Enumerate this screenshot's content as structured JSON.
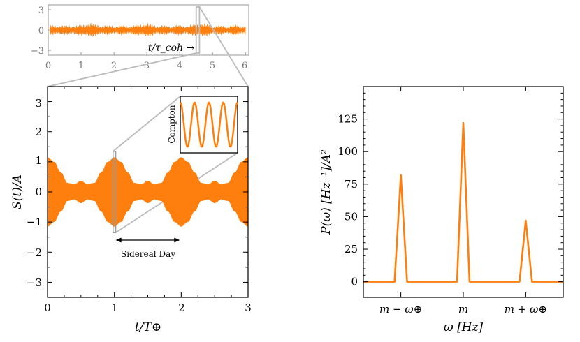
{
  "colors": {
    "signal": "#ff7f0e",
    "zoom": "#bbbbbb",
    "top_axis": "#999999",
    "axis": "#000000"
  },
  "chart_data": [
    {
      "type": "line",
      "panel": "top-inset",
      "description_text": {
        "annotation": "t/τ_coh →"
      },
      "xlim": [
        0,
        6.1
      ],
      "ylim": [
        -3.6,
        3.6
      ],
      "xticks": [
        "0",
        "1",
        "2",
        "3",
        "4",
        "5",
        "6"
      ],
      "yticks": [
        "3",
        "0",
        "−3"
      ],
      "typical_amplitude": 0.6,
      "zoom_window_x": [
        4.5,
        4.6
      ]
    },
    {
      "type": "line",
      "panel": "time-domain",
      "title": "",
      "xlabel": "t/T⊕",
      "ylabel": "S(t)/A",
      "xlim": [
        0,
        3
      ],
      "ylim": [
        -3.5,
        3.5
      ],
      "xticks": [
        "0",
        "1",
        "2",
        "3"
      ],
      "yticks": [
        "3",
        "2",
        "1",
        "0",
        "−1",
        "−2",
        "−3"
      ],
      "envelope_x": [
        0,
        0.1,
        0.2,
        0.3,
        0.4,
        0.5,
        0.6,
        0.7,
        0.8,
        0.9,
        1.0,
        1.1,
        1.2,
        1.3,
        1.4,
        1.5,
        1.6,
        1.7,
        1.8,
        1.9,
        2.0,
        2.1,
        2.2,
        2.3,
        2.4,
        2.5,
        2.6,
        2.7,
        2.8,
        2.9,
        3.0
      ],
      "envelope_y": [
        1.15,
        1.0,
        0.65,
        0.3,
        0.25,
        0.37,
        0.25,
        0.3,
        0.65,
        1.0,
        1.15,
        1.0,
        0.65,
        0.3,
        0.25,
        0.37,
        0.25,
        0.3,
        0.65,
        1.0,
        1.15,
        1.0,
        0.65,
        0.3,
        0.25,
        0.37,
        0.25,
        0.3,
        0.65,
        1.0,
        1.15
      ],
      "annotation": "Sidereal Day",
      "arrow_x": [
        1.0,
        2.0
      ],
      "arrow_y": -1.6,
      "inset_label": "Compton",
      "inset_cycles": 4,
      "zoom_window_x": [
        0.98,
        1.02
      ],
      "zoom_window_y": [
        -1.35,
        1.35
      ]
    },
    {
      "type": "line",
      "panel": "power-spectrum",
      "xlabel": "ω [Hz]",
      "ylabel": "P(ω) [Hz⁻¹]/A²",
      "xlim": [
        -1.6,
        1.6
      ],
      "ylim": [
        -12,
        150
      ],
      "xtick_values": [
        -1,
        0,
        1
      ],
      "xticks": [
        "m − ω⊕",
        "m",
        "m + ω⊕"
      ],
      "ytick_values": [
        0,
        25,
        50,
        75,
        100,
        125
      ],
      "yticks": [
        "0",
        "25",
        "50",
        "75",
        "100",
        "125"
      ],
      "x": [
        -1.6,
        -1.1,
        -1.0,
        -0.9,
        -0.1,
        0.0,
        0.1,
        0.9,
        1.0,
        1.1,
        1.6
      ],
      "y": [
        0,
        0,
        82,
        0,
        0,
        122,
        0,
        0,
        47,
        0,
        0
      ]
    }
  ]
}
